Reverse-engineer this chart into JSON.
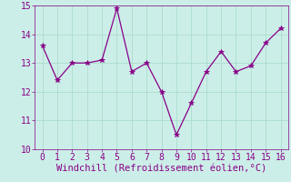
{
  "x": [
    0,
    1,
    2,
    3,
    4,
    5,
    6,
    7,
    8,
    9,
    10,
    11,
    12,
    13,
    14,
    15,
    16
  ],
  "y": [
    13.6,
    12.4,
    13.0,
    13.0,
    13.1,
    14.9,
    12.7,
    13.0,
    12.0,
    10.5,
    11.6,
    12.7,
    13.4,
    12.7,
    12.9,
    13.7,
    14.2
  ],
  "line_color": "#880088",
  "marker": "*",
  "marker_size": 4,
  "background_color": "#cceee8",
  "grid_color": "#aaddcc",
  "xlabel": "Windchill (Refroidissement éolien,°C)",
  "xlabel_color": "#880088",
  "xlabel_fontsize": 7.5,
  "tick_color": "#880088",
  "tick_fontsize": 7,
  "ylim": [
    10,
    15
  ],
  "xlim": [
    -0.5,
    16.5
  ],
  "yticks": [
    10,
    11,
    12,
    13,
    14,
    15
  ],
  "xticks": [
    0,
    1,
    2,
    3,
    4,
    5,
    6,
    7,
    8,
    9,
    10,
    11,
    12,
    13,
    14,
    15,
    16
  ]
}
